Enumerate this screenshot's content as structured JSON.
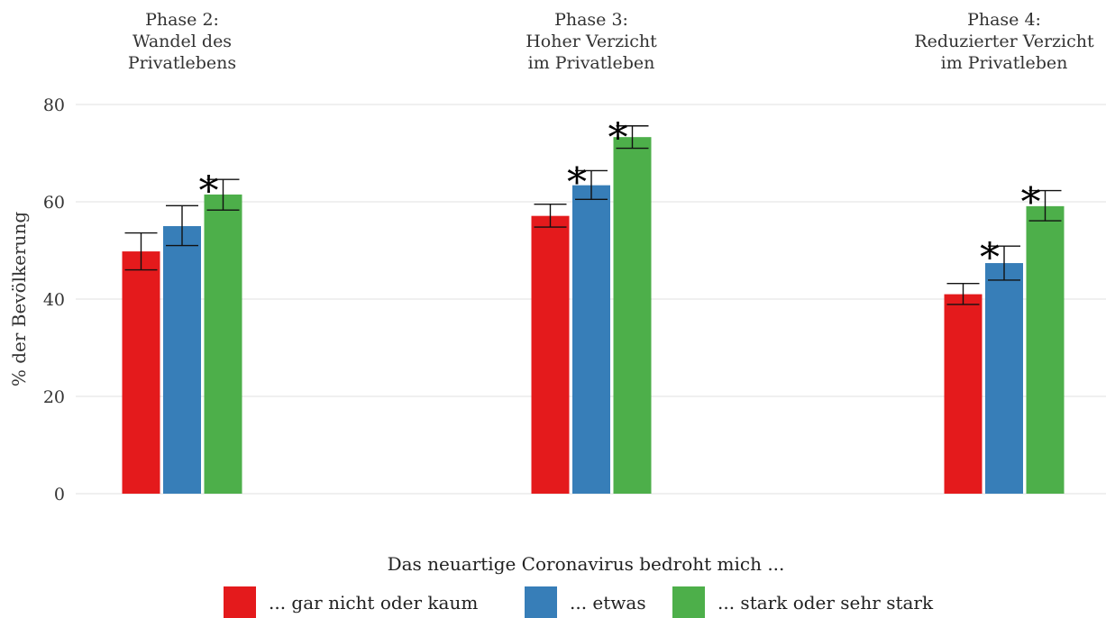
{
  "chart_data": {
    "type": "bar",
    "ylabel": "% der Bevölkerung",
    "ylim": [
      0,
      80
    ],
    "yticks": [
      0,
      20,
      40,
      60,
      80
    ],
    "grid": true,
    "legend_title": "Das neuartige Coronavirus bedroht mich ...",
    "legend_position": "bottom",
    "colors": [
      "#e41a1c",
      "#377eb8",
      "#4daf4a"
    ],
    "series": [
      {
        "name": "... gar nicht oder kaum",
        "color": "#e41a1c"
      },
      {
        "name": "... etwas",
        "color": "#377eb8"
      },
      {
        "name": "... stark oder sehr stark",
        "color": "#4daf4a"
      }
    ],
    "groups": [
      {
        "title_lines": [
          "Phase 2:",
          "Wandel des",
          "Privatlebens"
        ],
        "values": [
          49.8,
          55.0,
          61.5
        ],
        "err_low": [
          46.0,
          51.0,
          58.3
        ],
        "err_high": [
          53.6,
          59.2,
          64.6
        ],
        "significant": [
          false,
          false,
          true
        ]
      },
      {
        "title_lines": [
          "Phase 3:",
          "Hoher Verzicht",
          "im Privatleben"
        ],
        "values": [
          57.1,
          63.4,
          73.3
        ],
        "err_low": [
          54.8,
          60.5,
          71.0
        ],
        "err_high": [
          59.5,
          66.4,
          75.6
        ],
        "significant": [
          false,
          true,
          true
        ]
      },
      {
        "title_lines": [
          "Phase 4:",
          "Reduzierter Verzicht",
          "im Privatleben"
        ],
        "values": [
          41.0,
          47.4,
          59.1
        ],
        "err_low": [
          38.9,
          43.9,
          56.1
        ],
        "err_high": [
          43.2,
          50.9,
          62.3
        ],
        "significant": [
          false,
          true,
          true
        ]
      }
    ],
    "significance_marker": "*"
  }
}
